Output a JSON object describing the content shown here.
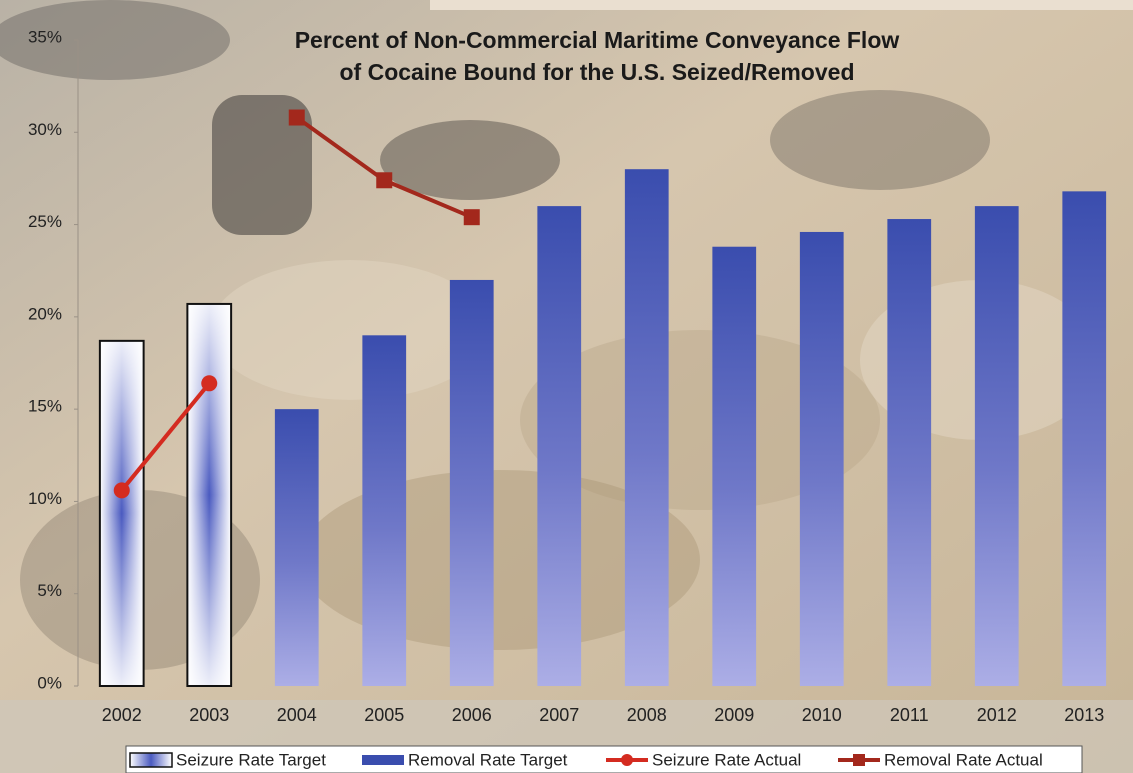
{
  "chart_data": {
    "type": "bar",
    "title": "Percent of Non-Commercial Maritime Conveyance Flow",
    "subtitle": "of Cocaine Bound for the U.S. Seized/Removed",
    "categories": [
      "2002",
      "2003",
      "2004",
      "2005",
      "2006",
      "2007",
      "2008",
      "2009",
      "2010",
      "2011",
      "2012",
      "2013"
    ],
    "series": [
      {
        "name": "Seizure Rate Target",
        "type": "bar",
        "style": "outline",
        "color": "#4a5ac0",
        "values": [
          18.7,
          20.7,
          null,
          null,
          null,
          null,
          null,
          null,
          null,
          null,
          null,
          null
        ]
      },
      {
        "name": "Removal Rate Target",
        "type": "bar",
        "style": "solid",
        "color": "#3a4dae",
        "values": [
          null,
          null,
          15.0,
          19.0,
          22.0,
          26.0,
          28.0,
          23.8,
          24.6,
          25.3,
          26.0,
          26.8
        ]
      },
      {
        "name": "Seizure Rate Actual",
        "type": "line",
        "marker": "circle",
        "color": "#d42b20",
        "values": [
          10.6,
          16.4,
          null,
          null,
          null,
          null,
          null,
          null,
          null,
          null,
          null,
          null
        ]
      },
      {
        "name": "Removal Rate Actual",
        "type": "line",
        "marker": "square",
        "color": "#a3281c",
        "values": [
          null,
          null,
          30.8,
          27.4,
          25.4,
          null,
          null,
          null,
          null,
          null,
          null,
          null
        ]
      }
    ],
    "ylim": [
      0,
      35
    ],
    "yticks": [
      {
        "value": 0,
        "label": "0%"
      },
      {
        "value": 5,
        "label": "5%"
      },
      {
        "value": 10,
        "label": "10%"
      },
      {
        "value": 15,
        "label": "15%"
      },
      {
        "value": 20,
        "label": "20%"
      },
      {
        "value": 25,
        "label": "25%"
      },
      {
        "value": 30,
        "label": "30%"
      },
      {
        "value": 35,
        "label": "35%"
      }
    ],
    "grid": false,
    "legend": "bottom"
  }
}
